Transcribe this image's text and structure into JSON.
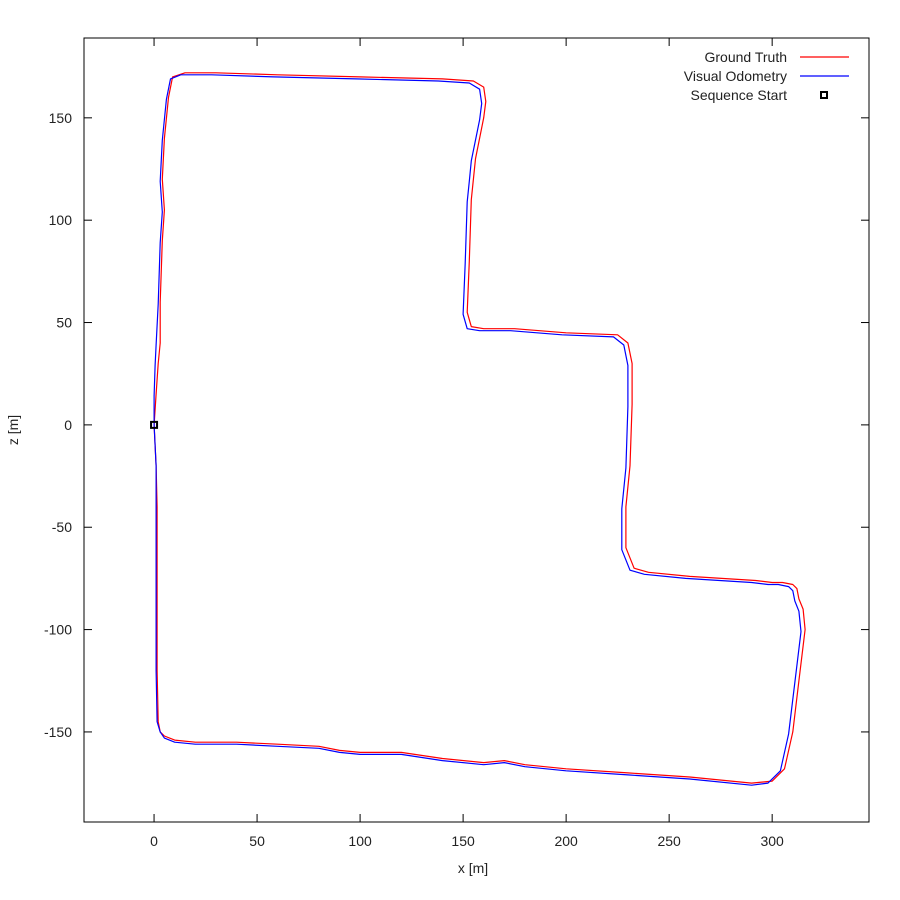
{
  "chart_data": {
    "type": "line",
    "xlabel": "x [m]",
    "ylabel": "z [m]",
    "xlim": [
      -34,
      347
    ],
    "ylim": [
      -194,
      189
    ],
    "xticks": [
      0,
      50,
      100,
      150,
      200,
      250,
      300
    ],
    "yticks": [
      150,
      100,
      50,
      0,
      -50,
      -100,
      -150
    ],
    "grid": false,
    "legend_position": "top-right",
    "series": [
      {
        "name": "Ground Truth",
        "color": "#ff0000",
        "x": [
          0,
          0.5,
          1,
          1.5,
          1.5,
          1.5,
          2,
          3,
          5,
          10,
          20,
          40,
          60,
          80,
          90,
          100,
          120,
          140,
          160,
          170,
          180,
          200,
          230,
          260,
          290,
          300,
          306,
          310,
          313,
          316,
          315,
          313,
          312,
          310,
          305,
          300,
          292,
          260,
          240,
          233,
          229,
          229,
          231,
          232,
          232,
          230,
          225,
          200,
          175,
          160,
          154,
          152,
          153,
          154,
          155,
          156,
          160,
          161,
          160,
          155,
          140,
          100,
          60,
          30,
          15,
          9,
          7,
          5,
          4,
          5,
          4,
          3,
          3,
          2,
          1,
          0
        ],
        "y": [
          0,
          -10,
          -20,
          -40,
          -80,
          -120,
          -145,
          -150,
          -152,
          -154,
          -155,
          -155,
          -156,
          -157,
          -159,
          -160,
          -160,
          -163,
          -165,
          -164,
          -166,
          -168,
          -170,
          -172,
          -175,
          -174,
          -168,
          -150,
          -125,
          -100,
          -90,
          -85,
          -80,
          -78,
          -77,
          -77,
          -76,
          -74,
          -72,
          -70,
          -60,
          -40,
          -20,
          10,
          30,
          40,
          44,
          45,
          47,
          47,
          48,
          55,
          80,
          110,
          120,
          130,
          150,
          158,
          165,
          168,
          169,
          170,
          171,
          172,
          172,
          170,
          160,
          140,
          120,
          105,
          90,
          60,
          40,
          30,
          15,
          0
        ]
      },
      {
        "name": "Visual Odometry",
        "color": "#0000ff",
        "x": [
          0,
          0.5,
          1,
          1,
          1,
          1,
          1.5,
          3,
          5,
          10,
          20,
          40,
          60,
          80,
          90,
          100,
          120,
          140,
          160,
          170,
          180,
          200,
          230,
          260,
          290,
          298,
          304,
          308,
          311,
          314,
          313,
          311,
          310,
          308,
          303,
          298,
          290,
          258,
          238,
          231,
          227,
          227,
          229,
          230,
          230,
          228,
          223,
          198,
          173,
          158,
          152,
          150,
          151,
          152,
          153,
          154,
          158,
          159,
          158,
          153,
          138,
          98,
          58,
          28,
          13,
          8,
          6,
          4,
          3,
          4,
          3,
          2,
          1,
          0.5,
          0,
          0
        ],
        "y": [
          0,
          -10,
          -20,
          -40,
          -80,
          -120,
          -145,
          -150,
          -153,
          -155,
          -156,
          -156,
          -157,
          -158,
          -160,
          -161,
          -161,
          -164,
          -166,
          -165,
          -167,
          -169,
          -171,
          -173,
          -176,
          -175,
          -169,
          -151,
          -126,
          -101,
          -91,
          -86,
          -81,
          -79,
          -78,
          -78,
          -77,
          -75,
          -73,
          -71,
          -61,
          -41,
          -21,
          9,
          29,
          39,
          43,
          44,
          46,
          46,
          47,
          54,
          79,
          109,
          119,
          129,
          149,
          157,
          164,
          167,
          168,
          169,
          170,
          171,
          171,
          169,
          159,
          139,
          119,
          104,
          89,
          59,
          39,
          29,
          14,
          0
        ]
      }
    ],
    "markers": [
      {
        "name": "Sequence Start",
        "x": 0,
        "y": 0,
        "symbol": "square",
        "color": "#000000"
      }
    ]
  }
}
